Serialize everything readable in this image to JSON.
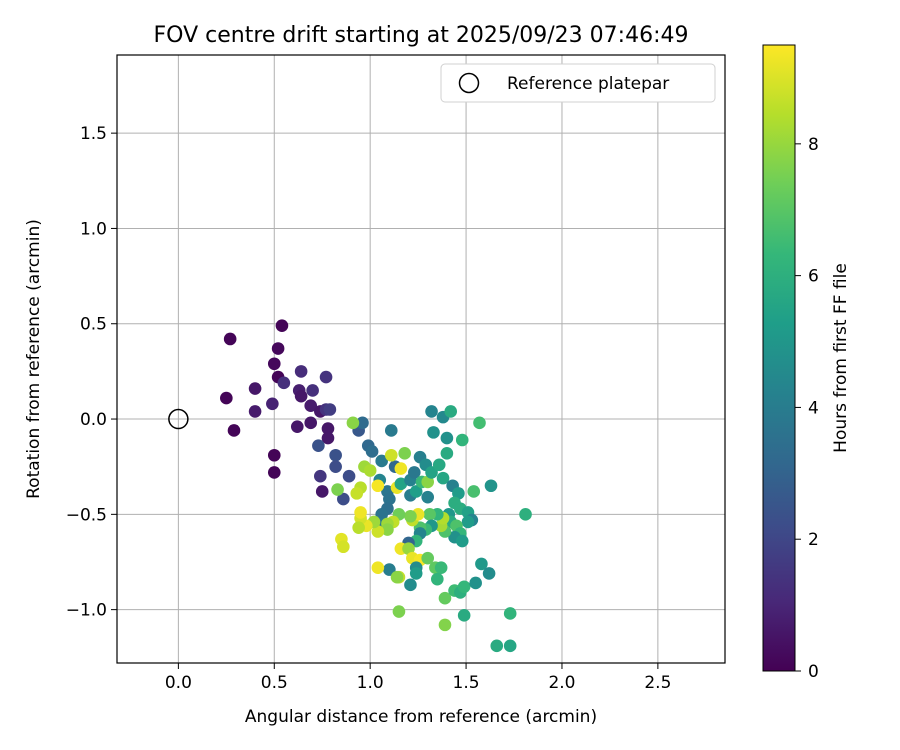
{
  "chart_data": {
    "type": "scatter",
    "title": "FOV centre drift starting at 2025/09/23 07:46:49",
    "xlabel": "Angular distance from reference (arcmin)",
    "ylabel": "Rotation from reference (arcmin)",
    "xlim": [
      -0.32,
      2.85
    ],
    "ylim": [
      -1.28,
      1.91
    ],
    "xticks": [
      0.0,
      0.5,
      1.0,
      1.5,
      2.0,
      2.5
    ],
    "xtick_labels": [
      "0.0",
      "0.5",
      "1.0",
      "1.5",
      "2.0",
      "2.5"
    ],
    "yticks": [
      -1.0,
      -0.5,
      0.0,
      0.5,
      1.0,
      1.5
    ],
    "ytick_labels": [
      "−1.0",
      "−0.5",
      "0.0",
      "0.5",
      "1.0",
      "1.5"
    ],
    "grid": true,
    "legend": {
      "position": "top-right",
      "entries": [
        "Reference platepar"
      ]
    },
    "reference_point": {
      "x": 0.0,
      "y": 0.0,
      "label": "Reference platepar"
    },
    "colorbar": {
      "label": "Hours from first FF file",
      "range": [
        0,
        9.5
      ],
      "ticks": [
        0,
        2,
        4,
        6,
        8
      ],
      "tick_labels": [
        "0",
        "2",
        "4",
        "6",
        "8"
      ],
      "colormap": "viridis"
    },
    "colormap_stops": [
      "#440154",
      "#482878",
      "#3e4a89",
      "#31688e",
      "#26828e",
      "#1f9e89",
      "#35b779",
      "#6ece58",
      "#b5de2b",
      "#fde725"
    ],
    "points": [
      {
        "x": 0.27,
        "y": 0.42,
        "h": 0.1
      },
      {
        "x": 0.54,
        "y": 0.49,
        "h": 0.1
      },
      {
        "x": 0.52,
        "y": 0.37,
        "h": 0.2
      },
      {
        "x": 0.5,
        "y": 0.29,
        "h": 0.2
      },
      {
        "x": 0.52,
        "y": 0.22,
        "h": 0.1
      },
      {
        "x": 0.25,
        "y": 0.11,
        "h": 0.1
      },
      {
        "x": 0.29,
        "y": -0.06,
        "h": 0.1
      },
      {
        "x": 0.5,
        "y": -0.19,
        "h": 0.1
      },
      {
        "x": 0.5,
        "y": -0.28,
        "h": 0.1
      },
      {
        "x": 0.4,
        "y": 0.16,
        "h": 0.6
      },
      {
        "x": 0.4,
        "y": 0.04,
        "h": 0.7
      },
      {
        "x": 0.49,
        "y": 0.08,
        "h": 0.9
      },
      {
        "x": 0.55,
        "y": 0.19,
        "h": 1.3
      },
      {
        "x": 0.64,
        "y": 0.25,
        "h": 1.2
      },
      {
        "x": 0.63,
        "y": 0.15,
        "h": 0.8
      },
      {
        "x": 0.64,
        "y": 0.12,
        "h": 0.6
      },
      {
        "x": 0.69,
        "y": 0.07,
        "h": 0.7
      },
      {
        "x": 0.7,
        "y": 0.15,
        "h": 1.3
      },
      {
        "x": 0.62,
        "y": -0.04,
        "h": 0.6
      },
      {
        "x": 0.69,
        "y": -0.02,
        "h": 0.6
      },
      {
        "x": 0.74,
        "y": 0.04,
        "h": 0.6
      },
      {
        "x": 0.77,
        "y": 0.22,
        "h": 1.4
      },
      {
        "x": 0.77,
        "y": 0.05,
        "h": 1.4
      },
      {
        "x": 0.79,
        "y": 0.05,
        "h": 1.7
      },
      {
        "x": 0.78,
        "y": -0.05,
        "h": 0.6
      },
      {
        "x": 0.78,
        "y": -0.1,
        "h": 0.6
      },
      {
        "x": 0.73,
        "y": -0.14,
        "h": 2.4
      },
      {
        "x": 0.74,
        "y": -0.3,
        "h": 1.5
      },
      {
        "x": 0.75,
        "y": -0.38,
        "h": 0.6
      },
      {
        "x": 0.82,
        "y": -0.19,
        "h": 2.4
      },
      {
        "x": 0.82,
        "y": -0.25,
        "h": 2.2
      },
      {
        "x": 0.86,
        "y": -0.42,
        "h": 2.2
      },
      {
        "x": 0.89,
        "y": -0.3,
        "h": 2.2
      },
      {
        "x": 0.94,
        "y": -0.06,
        "h": 2.6
      },
      {
        "x": 0.96,
        "y": -0.02,
        "h": 3.3
      },
      {
        "x": 0.91,
        "y": -0.02,
        "h": 7.8
      },
      {
        "x": 0.99,
        "y": -0.14,
        "h": 3.2
      },
      {
        "x": 1.01,
        "y": -0.17,
        "h": 3.4
      },
      {
        "x": 1.06,
        "y": -0.22,
        "h": 3.9
      },
      {
        "x": 1.11,
        "y": -0.06,
        "h": 3.9
      },
      {
        "x": 1.13,
        "y": -0.25,
        "h": 3.2
      },
      {
        "x": 1.18,
        "y": -0.18,
        "h": 7.6
      },
      {
        "x": 1.11,
        "y": -0.19,
        "h": 8.8
      },
      {
        "x": 0.97,
        "y": -0.25,
        "h": 8.1
      },
      {
        "x": 1.0,
        "y": -0.27,
        "h": 8.3
      },
      {
        "x": 1.05,
        "y": -0.32,
        "h": 4.3
      },
      {
        "x": 1.09,
        "y": -0.38,
        "h": 3.7
      },
      {
        "x": 1.1,
        "y": -0.42,
        "h": 3.6
      },
      {
        "x": 1.09,
        "y": -0.47,
        "h": 3.5
      },
      {
        "x": 1.06,
        "y": -0.5,
        "h": 3.6
      },
      {
        "x": 1.05,
        "y": -0.55,
        "h": 3.9
      },
      {
        "x": 0.95,
        "y": -0.36,
        "h": 8.5
      },
      {
        "x": 0.93,
        "y": -0.39,
        "h": 8.7
      },
      {
        "x": 0.83,
        "y": -0.37,
        "h": 7.6
      },
      {
        "x": 1.04,
        "y": -0.35,
        "h": 9.4
      },
      {
        "x": 1.14,
        "y": -0.36,
        "h": 9.2
      },
      {
        "x": 1.16,
        "y": -0.26,
        "h": 9.3
      },
      {
        "x": 1.16,
        "y": -0.34,
        "h": 5.5
      },
      {
        "x": 1.21,
        "y": -0.32,
        "h": 4.2
      },
      {
        "x": 1.23,
        "y": -0.28,
        "h": 3.8
      },
      {
        "x": 1.26,
        "y": -0.2,
        "h": 4.1
      },
      {
        "x": 1.21,
        "y": -0.4,
        "h": 4.0
      },
      {
        "x": 1.24,
        "y": -0.38,
        "h": 5.3
      },
      {
        "x": 1.27,
        "y": -0.33,
        "h": 6.4
      },
      {
        "x": 1.3,
        "y": -0.33,
        "h": 7.8
      },
      {
        "x": 1.29,
        "y": -0.24,
        "h": 4.6
      },
      {
        "x": 1.3,
        "y": -0.41,
        "h": 4.2
      },
      {
        "x": 1.32,
        "y": -0.28,
        "h": 5.5
      },
      {
        "x": 1.36,
        "y": -0.24,
        "h": 5.7
      },
      {
        "x": 1.38,
        "y": -0.31,
        "h": 5.6
      },
      {
        "x": 1.4,
        "y": -0.18,
        "h": 5.8
      },
      {
        "x": 1.4,
        "y": -0.1,
        "h": 4.8
      },
      {
        "x": 1.33,
        "y": -0.07,
        "h": 4.8
      },
      {
        "x": 1.32,
        "y": 0.04,
        "h": 4.3
      },
      {
        "x": 1.38,
        "y": 0.01,
        "h": 4.5
      },
      {
        "x": 1.42,
        "y": 0.04,
        "h": 5.8
      },
      {
        "x": 1.48,
        "y": -0.11,
        "h": 6.2
      },
      {
        "x": 1.57,
        "y": -0.02,
        "h": 6.6
      },
      {
        "x": 1.43,
        "y": -0.35,
        "h": 4.2
      },
      {
        "x": 1.46,
        "y": -0.39,
        "h": 5.2
      },
      {
        "x": 1.44,
        "y": -0.44,
        "h": 5.9
      },
      {
        "x": 1.47,
        "y": -0.47,
        "h": 5.9
      },
      {
        "x": 1.54,
        "y": -0.38,
        "h": 6.7
      },
      {
        "x": 1.51,
        "y": -0.49,
        "h": 5.4
      },
      {
        "x": 1.53,
        "y": -0.53,
        "h": 4.3
      },
      {
        "x": 1.51,
        "y": -0.54,
        "h": 5.2
      },
      {
        "x": 1.41,
        "y": -0.5,
        "h": 5.0
      },
      {
        "x": 1.42,
        "y": -0.54,
        "h": 5.8
      },
      {
        "x": 1.45,
        "y": -0.56,
        "h": 6.8
      },
      {
        "x": 1.47,
        "y": -0.6,
        "h": 6.3
      },
      {
        "x": 1.44,
        "y": -0.62,
        "h": 4.8
      },
      {
        "x": 1.48,
        "y": -0.64,
        "h": 5.2
      },
      {
        "x": 1.39,
        "y": -0.59,
        "h": 6.8
      },
      {
        "x": 1.37,
        "y": -0.56,
        "h": 8.2
      },
      {
        "x": 1.38,
        "y": -0.52,
        "h": 8.4
      },
      {
        "x": 1.35,
        "y": -0.5,
        "h": 6.2
      },
      {
        "x": 1.31,
        "y": -0.5,
        "h": 7.0
      },
      {
        "x": 1.32,
        "y": -0.56,
        "h": 5.0
      },
      {
        "x": 1.29,
        "y": -0.58,
        "h": 6.4
      },
      {
        "x": 1.26,
        "y": -0.57,
        "h": 6.8
      },
      {
        "x": 1.26,
        "y": -0.6,
        "h": 4.3
      },
      {
        "x": 1.24,
        "y": -0.64,
        "h": 6.2
      },
      {
        "x": 1.2,
        "y": -0.65,
        "h": 3.1
      },
      {
        "x": 1.22,
        "y": -0.53,
        "h": 8.6
      },
      {
        "x": 1.25,
        "y": -0.5,
        "h": 9.2
      },
      {
        "x": 1.21,
        "y": -0.51,
        "h": 7.6
      },
      {
        "x": 1.15,
        "y": -0.5,
        "h": 7.4
      },
      {
        "x": 1.12,
        "y": -0.54,
        "h": 8.6
      },
      {
        "x": 1.09,
        "y": -0.55,
        "h": 8.1
      },
      {
        "x": 1.09,
        "y": -0.58,
        "h": 7.8
      },
      {
        "x": 1.04,
        "y": -0.59,
        "h": 8.8
      },
      {
        "x": 1.02,
        "y": -0.54,
        "h": 8.1
      },
      {
        "x": 0.98,
        "y": -0.56,
        "h": 9.2
      },
      {
        "x": 0.95,
        "y": -0.52,
        "h": 8.9
      },
      {
        "x": 0.95,
        "y": -0.49,
        "h": 9.3
      },
      {
        "x": 0.94,
        "y": -0.57,
        "h": 8.5
      },
      {
        "x": 0.85,
        "y": -0.63,
        "h": 9.1
      },
      {
        "x": 0.86,
        "y": -0.67,
        "h": 8.9
      },
      {
        "x": 1.16,
        "y": -0.68,
        "h": 9.3
      },
      {
        "x": 1.2,
        "y": -0.68,
        "h": 8.0
      },
      {
        "x": 1.22,
        "y": -0.73,
        "h": 9.2
      },
      {
        "x": 1.26,
        "y": -0.74,
        "h": 9.4
      },
      {
        "x": 1.3,
        "y": -0.73,
        "h": 7.2
      },
      {
        "x": 1.24,
        "y": -0.78,
        "h": 4.6
      },
      {
        "x": 1.24,
        "y": -0.81,
        "h": 5.2
      },
      {
        "x": 1.21,
        "y": -0.87,
        "h": 4.6
      },
      {
        "x": 1.1,
        "y": -0.79,
        "h": 4.0
      },
      {
        "x": 1.04,
        "y": -0.78,
        "h": 9.3
      },
      {
        "x": 1.15,
        "y": -0.83,
        "h": 8.6
      },
      {
        "x": 1.14,
        "y": -0.83,
        "h": 7.8
      },
      {
        "x": 1.34,
        "y": -0.78,
        "h": 7.1
      },
      {
        "x": 1.37,
        "y": -0.78,
        "h": 6.4
      },
      {
        "x": 1.35,
        "y": -0.84,
        "h": 6.2
      },
      {
        "x": 1.39,
        "y": -0.94,
        "h": 7.2
      },
      {
        "x": 1.39,
        "y": -1.08,
        "h": 7.7
      },
      {
        "x": 1.15,
        "y": -1.01,
        "h": 7.6
      },
      {
        "x": 1.44,
        "y": -0.9,
        "h": 6.5
      },
      {
        "x": 1.47,
        "y": -0.91,
        "h": 6.0
      },
      {
        "x": 1.49,
        "y": -0.88,
        "h": 6.3
      },
      {
        "x": 1.49,
        "y": -1.03,
        "h": 5.8
      },
      {
        "x": 1.55,
        "y": -0.86,
        "h": 4.8
      },
      {
        "x": 1.58,
        "y": -0.76,
        "h": 5.1
      },
      {
        "x": 1.62,
        "y": -0.81,
        "h": 4.6
      },
      {
        "x": 1.63,
        "y": -0.35,
        "h": 4.9
      },
      {
        "x": 1.81,
        "y": -0.5,
        "h": 6.0
      },
      {
        "x": 1.73,
        "y": -1.02,
        "h": 6.2
      },
      {
        "x": 1.66,
        "y": -1.19,
        "h": 5.8
      },
      {
        "x": 1.73,
        "y": -1.19,
        "h": 5.6
      }
    ]
  }
}
